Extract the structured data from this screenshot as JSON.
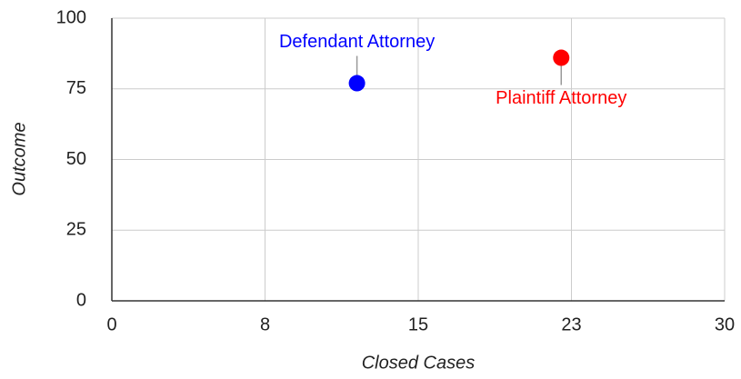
{
  "chart_data": {
    "type": "scatter",
    "x_label": "Closed Cases",
    "y_label": "Outcome",
    "series": [
      {
        "name": "Defendant Attorney",
        "color": "#0000ff",
        "x": [
          12
        ],
        "values": [
          77
        ]
      },
      {
        "name": "Plaintiff Attorney",
        "color": "#ff0000",
        "x": [
          22
        ],
        "values": [
          86
        ]
      }
    ],
    "xlim": [
      0,
      30
    ],
    "xticks": [
      0,
      {
        "value": 7.5,
        "label": "8"
      },
      15,
      {
        "value": 22.5,
        "label": "23"
      },
      30
    ],
    "ylim": [
      0,
      100
    ],
    "yticks": [
      0,
      25,
      50,
      75,
      100
    ],
    "grid": true
  }
}
